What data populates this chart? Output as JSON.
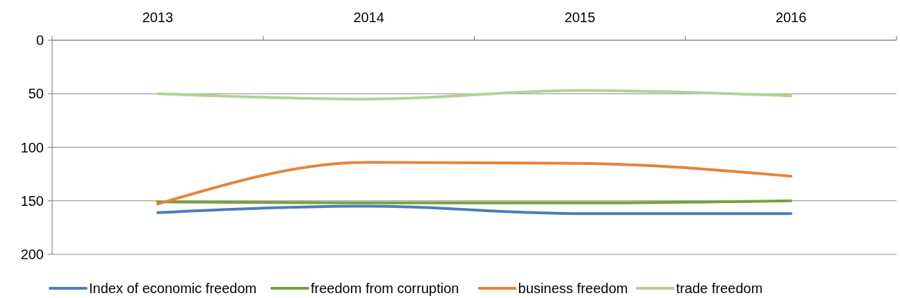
{
  "chart_data": {
    "type": "line",
    "categories": [
      "2013",
      "2014",
      "2015",
      "2016"
    ],
    "ylim": [
      200,
      0
    ],
    "yticks": [
      0,
      50,
      100,
      150,
      200
    ],
    "grid": "y",
    "legend": "bottom",
    "line_style": "solid",
    "marker": "none",
    "series": [
      {
        "name": "Index of economic freedom",
        "color": "#4a7ebb",
        "values": [
          161,
          155,
          162,
          162
        ]
      },
      {
        "name": "freedom from corruption",
        "color": "#77a23b",
        "values": [
          151,
          152,
          152,
          150
        ]
      },
      {
        "name": "business freedom",
        "color": "#e5843c",
        "values": [
          153,
          114,
          115,
          127
        ]
      },
      {
        "name": "trade freedom",
        "color": "#b5d195",
        "values": [
          50,
          55,
          47,
          52
        ]
      }
    ]
  }
}
